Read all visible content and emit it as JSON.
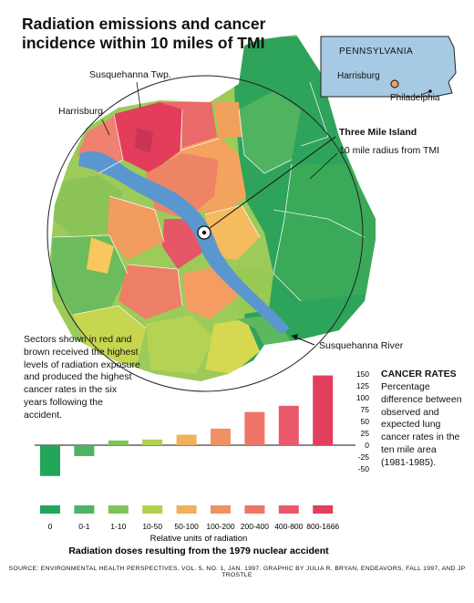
{
  "title_line1": "Radiation emissions and cancer",
  "title_line2": "incidence within 10 miles of TMI",
  "map": {
    "labels": {
      "susquehanna_twp": "Susquehanna Twp.",
      "harrisburg": "Harrisburg",
      "three_mile_island": "Three Mile Island",
      "radius": "10 mile radius from TMI",
      "river": "Susquehanna River"
    },
    "inset": {
      "state": "PENNSYLVANIA",
      "harrisburg": "Harrisburg",
      "philadelphia": "Philadelphia"
    }
  },
  "note": "Sectors shown in red and brown received the highest levels of radiation exposure and produced the highest cancer rates in the six years following the accident.",
  "rates": {
    "heading": "CANCER RATES",
    "description": "Percentage difference between observed and expected lung cancer rates in the ten mile area (1981-1985)."
  },
  "colors": [
    "#22a65a",
    "#4cb464",
    "#7fc457",
    "#b2d24f",
    "#f0b05c",
    "#f19163",
    "#ee7566",
    "#e9596a",
    "#e0405c"
  ],
  "chart_data": {
    "type": "bar",
    "categories": [
      "0",
      "0-1",
      "1-10",
      "10-50",
      "50-100",
      "100-200",
      "200-400",
      "400-800",
      "800-1666"
    ],
    "values": [
      -65,
      -23,
      10,
      12,
      22,
      35,
      70,
      83,
      147
    ],
    "ylim": [
      -75,
      160
    ],
    "yticks": [
      150,
      125,
      100,
      75,
      50,
      25,
      0,
      -25,
      -50
    ],
    "xlabel": "Relative units of radiation",
    "caption": "Radiation doses resulting from the 1979 nuclear accident"
  },
  "source": "SOURCE: ENVIRONMENTAL HEALTH PERSPECTIVES, VOL. 5, NO. 1, JAN. 1997. GRAPHIC BY JULIA R. BRYAN, ENDEAVORS, FALL 1997, AND JP TROSTLE"
}
